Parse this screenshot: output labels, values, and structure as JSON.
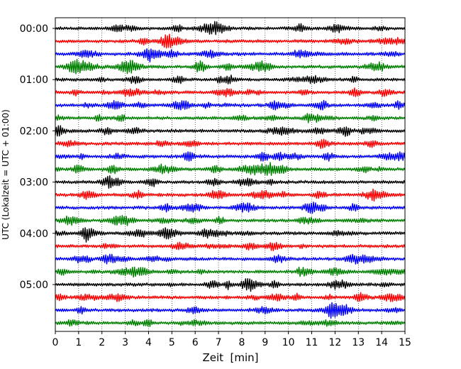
{
  "chart_data": {
    "type": "line",
    "title": "",
    "xlabel": "Zeit  [min]",
    "ylabel": "UTC (Lokalzeit = UTC + 01:00)",
    "xlim": [
      0,
      15
    ],
    "x_ticks": [
      0,
      1,
      2,
      3,
      4,
      5,
      6,
      7,
      8,
      9,
      10,
      11,
      12,
      13,
      14,
      15
    ],
    "y_tick_labels": [
      "00:00",
      "01:00",
      "02:00",
      "03:00",
      "04:00",
      "05:00"
    ],
    "trace_minutes": 15,
    "grid": {
      "x": true,
      "style": "dotted"
    },
    "series": [
      {
        "start": "00:00",
        "color": "#000000"
      },
      {
        "start": "00:15",
        "color": "#ff0000"
      },
      {
        "start": "00:30",
        "color": "#0000ff"
      },
      {
        "start": "00:45",
        "color": "#008000"
      },
      {
        "start": "01:00",
        "color": "#000000"
      },
      {
        "start": "01:15",
        "color": "#ff0000"
      },
      {
        "start": "01:30",
        "color": "#0000ff"
      },
      {
        "start": "01:45",
        "color": "#008000"
      },
      {
        "start": "02:00",
        "color": "#000000"
      },
      {
        "start": "02:15",
        "color": "#ff0000"
      },
      {
        "start": "02:30",
        "color": "#0000ff"
      },
      {
        "start": "02:45",
        "color": "#008000"
      },
      {
        "start": "03:00",
        "color": "#000000"
      },
      {
        "start": "03:15",
        "color": "#ff0000"
      },
      {
        "start": "03:30",
        "color": "#0000ff"
      },
      {
        "start": "03:45",
        "color": "#008000"
      },
      {
        "start": "04:00",
        "color": "#000000"
      },
      {
        "start": "04:15",
        "color": "#ff0000"
      },
      {
        "start": "04:30",
        "color": "#0000ff"
      },
      {
        "start": "04:45",
        "color": "#008000"
      },
      {
        "start": "05:00",
        "color": "#000000"
      },
      {
        "start": "05:15",
        "color": "#ff0000"
      },
      {
        "start": "05:30",
        "color": "#0000ff"
      },
      {
        "start": "05:45",
        "color": "#008000"
      }
    ]
  }
}
